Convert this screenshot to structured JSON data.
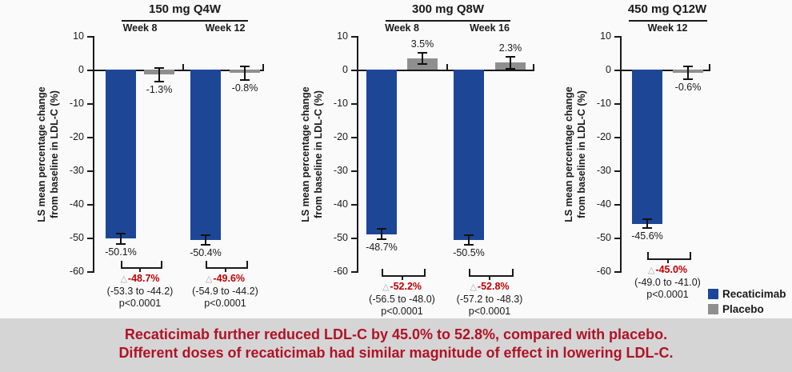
{
  "colors": {
    "recaticimab": "#1D4796",
    "placebo": "#8F8F8F",
    "axis": "#1A1A1A",
    "delta_red": "#C00000",
    "triangle_gray": "#A8A8A8",
    "banner_bg": "#D5D5D5",
    "banner_text": "#B11226"
  },
  "glyphs": {
    "delta_triangle": "△"
  },
  "y_axis": {
    "label_lines": [
      "LS mean percentage change",
      "from baseline in LDL-C (%)"
    ],
    "ticks": [
      "10",
      "0",
      "-10",
      "-20",
      "-30",
      "-40",
      "-50",
      "-60"
    ],
    "max": 10,
    "min": -60
  },
  "legend": {
    "items": [
      {
        "label": "Recaticimab",
        "color": "#1D4796"
      },
      {
        "label": "Placebo",
        "color": "#8F8F8F"
      }
    ]
  },
  "banner": {
    "line1": "Recaticimab further reduced LDL-C by 45.0% to 52.8%, compared with placebo.",
    "line2": "Different doses of recaticimab had similar magnitude of effect in lowering LDL-C."
  },
  "chart_data": [
    {
      "type": "bar",
      "title": "150 mg Q4W",
      "categories": [
        "Week 8",
        "Week 12"
      ],
      "ylabel": "LS mean percentage change from baseline in LDL-C (%)",
      "ylim": [
        -60,
        10
      ],
      "series": [
        {
          "name": "Recaticimab",
          "values": [
            -50.1,
            -50.4
          ],
          "labels": [
            "-50.1%",
            "-50.4%"
          ],
          "errors": [
            1.5,
            1.4
          ]
        },
        {
          "name": "Placebo",
          "values": [
            -1.3,
            -0.8
          ],
          "labels": [
            "-1.3%",
            "-0.8%"
          ],
          "errors": [
            2.1,
            2.0
          ]
        }
      ],
      "comparisons": [
        {
          "delta": "-48.7%",
          "ci": "(-53.3 to -44.2)",
          "p": "p<0.0001"
        },
        {
          "delta": "-49.6%",
          "ci": "(-54.9 to -44.2)",
          "p": "p<0.0001"
        }
      ]
    },
    {
      "type": "bar",
      "title": "300 mg Q8W",
      "categories": [
        "Week 8",
        "Week 16"
      ],
      "ylabel": "LS mean percentage change from baseline in LDL-C (%)",
      "ylim": [
        -60,
        10
      ],
      "series": [
        {
          "name": "Recaticimab",
          "values": [
            -48.7,
            -50.5
          ],
          "labels": [
            "-48.7%",
            "-50.5%"
          ],
          "errors": [
            1.5,
            1.4
          ]
        },
        {
          "name": "Placebo",
          "values": [
            3.5,
            2.3
          ],
          "labels": [
            "3.5%",
            "2.3%"
          ],
          "errors": [
            1.7,
            1.8
          ]
        }
      ],
      "comparisons": [
        {
          "delta": "-52.2%",
          "ci": "(-56.5 to -48.0)",
          "p": "p<0.0001"
        },
        {
          "delta": "-52.8%",
          "ci": "(-57.2 to -48.3)",
          "p": "p<0.0001"
        }
      ]
    },
    {
      "type": "bar",
      "title": "450 mg Q12W",
      "categories": [
        "Week 12"
      ],
      "ylabel": "LS mean percentage change from baseline in LDL-C (%)",
      "ylim": [
        -60,
        10
      ],
      "series": [
        {
          "name": "Recaticimab",
          "values": [
            -45.6
          ],
          "labels": [
            "-45.6%"
          ],
          "errors": [
            1.3
          ]
        },
        {
          "name": "Placebo",
          "values": [
            -0.6
          ],
          "labels": [
            "-0.6%"
          ],
          "errors": [
            1.9
          ]
        }
      ],
      "comparisons": [
        {
          "delta": "-45.0%",
          "ci": "(-49.0 to -41.0)",
          "p": "p<0.0001"
        }
      ]
    }
  ]
}
